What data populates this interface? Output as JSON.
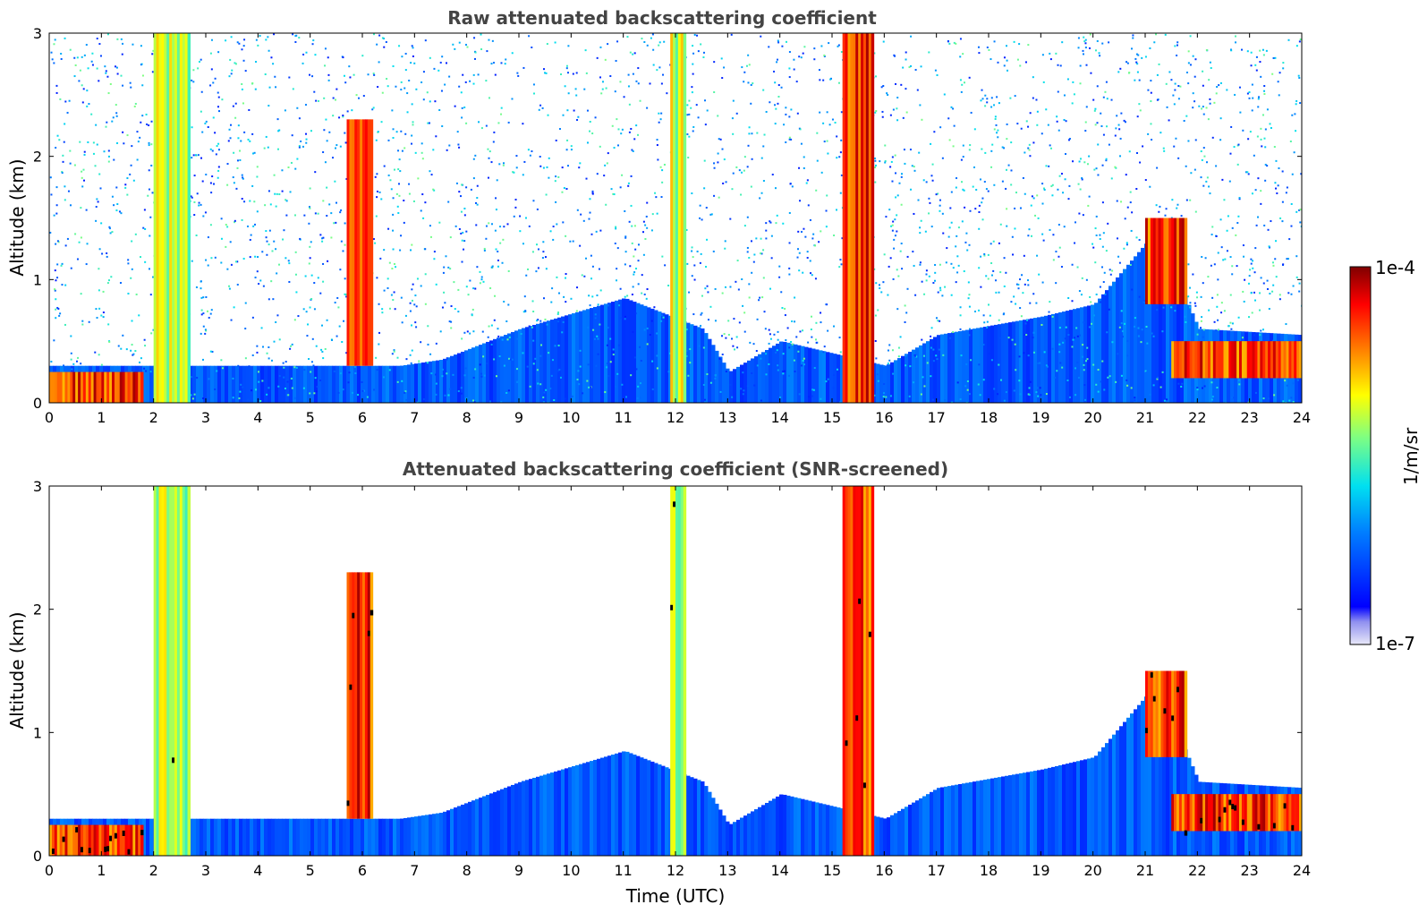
{
  "chart_data": [
    {
      "type": "heatmap",
      "title": "Raw attenuated backscattering coefficient",
      "xlabel": "",
      "ylabel": "Altitude (km)",
      "xlim": [
        0,
        24
      ],
      "ylim": [
        0,
        3
      ],
      "x_ticks": [
        "0",
        "1",
        "2",
        "3",
        "4",
        "5",
        "6",
        "7",
        "8",
        "9",
        "10",
        "11",
        "12",
        "13",
        "14",
        "15",
        "16",
        "17",
        "18",
        "19",
        "20",
        "21",
        "22",
        "23",
        "24"
      ],
      "y_ticks": [
        "0",
        "1",
        "2",
        "3"
      ],
      "boundary_layer_top_km": [
        [
          0,
          0.3
        ],
        [
          2,
          0.3
        ],
        [
          6.7,
          0.3
        ],
        [
          7.5,
          0.35
        ],
        [
          9,
          0.6
        ],
        [
          11,
          0.85
        ],
        [
          12.5,
          0.6
        ],
        [
          13,
          0.25
        ],
        [
          14,
          0.5
        ],
        [
          16,
          0.3
        ],
        [
          17,
          0.55
        ],
        [
          19,
          0.7
        ],
        [
          20,
          0.8
        ],
        [
          21.2,
          1.4
        ],
        [
          22,
          0.6
        ],
        [
          24,
          0.55
        ]
      ],
      "features": [
        {
          "t0": 0,
          "t1": 1.8,
          "z0": 0.0,
          "z1": 0.25,
          "level": "high"
        },
        {
          "t0": 2.0,
          "t1": 2.7,
          "z0": 0.0,
          "z1": 3.0,
          "level": "mid"
        },
        {
          "t0": 5.7,
          "t1": 6.2,
          "z0": 0.3,
          "z1": 2.3,
          "level": "high"
        },
        {
          "t0": 11.9,
          "t1": 12.2,
          "z0": 0.0,
          "z1": 3.0,
          "level": "mid"
        },
        {
          "t0": 15.2,
          "t1": 15.8,
          "z0": 0.0,
          "z1": 3.0,
          "level": "high"
        },
        {
          "t0": 21.0,
          "t1": 21.8,
          "z0": 0.8,
          "z1": 1.5,
          "level": "high"
        },
        {
          "t0": 21.5,
          "t1": 24.0,
          "z0": 0.2,
          "z1": 0.5,
          "level": "high"
        }
      ]
    },
    {
      "type": "heatmap",
      "title": "Attenuated backscattering coefficient (SNR-screened)",
      "xlabel": "Time (UTC)",
      "ylabel": "Altitude (km)",
      "xlim": [
        0,
        24
      ],
      "ylim": [
        0,
        3
      ],
      "x_ticks": [
        "0",
        "1",
        "2",
        "3",
        "4",
        "5",
        "6",
        "7",
        "8",
        "9",
        "10",
        "11",
        "12",
        "13",
        "14",
        "15",
        "16",
        "17",
        "18",
        "19",
        "20",
        "21",
        "22",
        "23",
        "24"
      ],
      "y_ticks": [
        "0",
        "1",
        "2",
        "3"
      ],
      "boundary_layer_top_km": [
        [
          0,
          0.3
        ],
        [
          2,
          0.3
        ],
        [
          6.7,
          0.3
        ],
        [
          7.5,
          0.35
        ],
        [
          9,
          0.6
        ],
        [
          11,
          0.85
        ],
        [
          12.5,
          0.6
        ],
        [
          13,
          0.25
        ],
        [
          14,
          0.5
        ],
        [
          16,
          0.3
        ],
        [
          17,
          0.55
        ],
        [
          19,
          0.7
        ],
        [
          20,
          0.8
        ],
        [
          21.2,
          1.4
        ],
        [
          22,
          0.6
        ],
        [
          24,
          0.55
        ]
      ],
      "screened": true
    }
  ],
  "colorbar": {
    "label": "1/m/sr",
    "max_label": "1e-4",
    "min_label": "1e-7",
    "scale": "log",
    "colormap": "jet",
    "range": [
      1e-07,
      0.0001
    ]
  }
}
